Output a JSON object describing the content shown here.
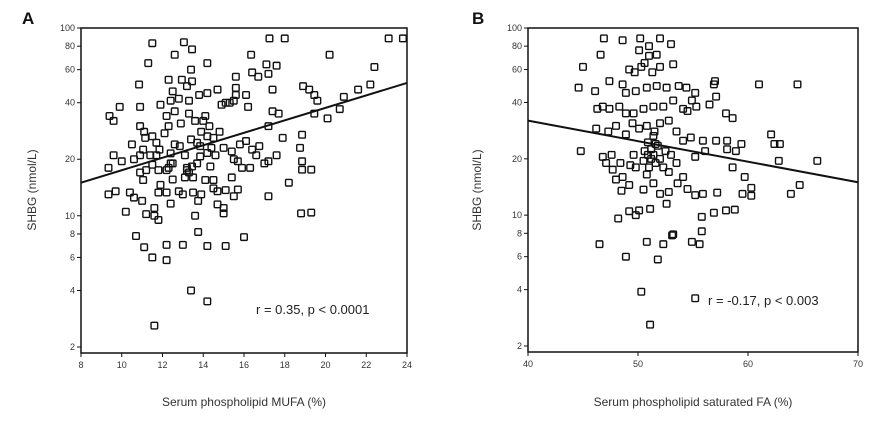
{
  "chart_data": [
    {
      "type": "scatter",
      "panel_label": "A",
      "xlabel": "Serum phospholipid MUFA (%)",
      "ylabel": "SHBG (nmol/L)",
      "xlim": [
        8,
        24
      ],
      "ylim": [
        2,
        100
      ],
      "yscale": "log",
      "xticks": [
        8,
        10,
        12,
        14,
        16,
        18,
        20,
        22,
        24
      ],
      "yticks": [
        2,
        4,
        6,
        8,
        10,
        20,
        40,
        60,
        80,
        100
      ],
      "annotation": "r = 0.35, p < 0.0001",
      "regression_line": [
        [
          8,
          15
        ],
        [
          24,
          51
        ]
      ],
      "marker": "open-square",
      "points": [
        [
          11.5,
          83
        ],
        [
          13.05,
          84
        ],
        [
          13.45,
          77
        ],
        [
          11.3,
          65
        ],
        [
          12.6,
          72
        ],
        [
          13.4,
          60
        ],
        [
          14.2,
          65
        ],
        [
          16.35,
          72
        ],
        [
          17.25,
          88
        ],
        [
          18,
          88
        ],
        [
          20.2,
          72
        ],
        [
          23.1,
          88
        ],
        [
          23.8,
          88
        ],
        [
          22.4,
          62
        ],
        [
          17.1,
          64
        ],
        [
          17.6,
          63
        ],
        [
          16.4,
          58
        ],
        [
          16.7,
          55
        ],
        [
          17.2,
          57
        ],
        [
          15.6,
          55
        ],
        [
          17.4,
          47
        ],
        [
          18.9,
          49
        ],
        [
          19.2,
          47
        ],
        [
          19.45,
          44
        ],
        [
          19.6,
          41
        ],
        [
          20.9,
          43
        ],
        [
          21.6,
          47
        ],
        [
          22.2,
          50
        ],
        [
          20.7,
          37
        ],
        [
          20.1,
          33
        ],
        [
          19.45,
          35
        ],
        [
          10.85,
          50
        ],
        [
          9.9,
          38
        ],
        [
          10.9,
          38
        ],
        [
          9.4,
          34
        ],
        [
          9.6,
          32
        ],
        [
          10.9,
          30
        ],
        [
          11.1,
          28
        ],
        [
          11.15,
          26
        ],
        [
          10.5,
          24
        ],
        [
          9.6,
          21
        ],
        [
          10,
          19.5
        ],
        [
          9.35,
          18
        ],
        [
          10.6,
          20
        ],
        [
          9.35,
          13
        ],
        [
          9.7,
          13.5
        ],
        [
          10.4,
          13.3
        ],
        [
          10.6,
          12.5
        ],
        [
          11,
          12
        ],
        [
          10.2,
          10.5
        ],
        [
          11.2,
          10.2
        ],
        [
          11.6,
          10
        ],
        [
          11.8,
          9.5
        ],
        [
          11.6,
          11
        ],
        [
          10.7,
          7.8
        ],
        [
          11.1,
          6.8
        ],
        [
          11.5,
          6
        ],
        [
          12.2,
          5.8
        ],
        [
          12.2,
          7
        ],
        [
          13,
          7
        ],
        [
          13.75,
          8.2
        ],
        [
          14.2,
          6.9
        ],
        [
          15.1,
          6.9
        ],
        [
          16,
          7.7
        ],
        [
          13.6,
          10
        ],
        [
          15,
          10.3
        ],
        [
          15,
          11
        ],
        [
          14.7,
          11.5
        ],
        [
          13.4,
          4.0
        ],
        [
          14.2,
          3.5
        ],
        [
          11.6,
          2.6
        ],
        [
          17.2,
          12.7
        ],
        [
          18.2,
          15
        ],
        [
          18.8,
          10.3
        ],
        [
          19.3,
          10.4
        ],
        [
          18.85,
          17.6
        ],
        [
          19.3,
          17.6
        ],
        [
          18.85,
          19.5
        ],
        [
          18.75,
          23
        ],
        [
          18.85,
          27
        ],
        [
          17.9,
          26
        ],
        [
          17.6,
          21
        ],
        [
          17.2,
          19.5
        ],
        [
          17,
          19
        ],
        [
          17.4,
          36
        ],
        [
          17.7,
          35
        ],
        [
          17.2,
          30
        ],
        [
          14.9,
          39
        ],
        [
          15.1,
          40
        ],
        [
          15.3,
          40
        ],
        [
          15.5,
          41
        ],
        [
          16.2,
          38
        ],
        [
          15.6,
          44
        ],
        [
          16.1,
          44
        ],
        [
          15.6,
          48
        ],
        [
          14.7,
          47
        ],
        [
          14.2,
          45
        ],
        [
          13.8,
          44
        ],
        [
          13.3,
          41
        ],
        [
          12.8,
          42
        ],
        [
          12.4,
          41
        ],
        [
          12.3,
          53
        ],
        [
          12.95,
          53
        ],
        [
          13.45,
          52
        ],
        [
          13.2,
          49
        ],
        [
          12.5,
          46
        ],
        [
          11.9,
          39
        ],
        [
          12.2,
          34
        ],
        [
          12.3,
          30
        ],
        [
          12.6,
          36
        ],
        [
          12.9,
          31
        ],
        [
          13.3,
          35
        ],
        [
          13.6,
          32
        ],
        [
          14,
          32
        ],
        [
          14.1,
          34
        ],
        [
          14.3,
          30
        ],
        [
          13.9,
          28
        ],
        [
          14.5,
          26
        ],
        [
          14.8,
          28
        ],
        [
          15,
          23
        ],
        [
          15.4,
          22
        ],
        [
          15.5,
          20
        ],
        [
          15.8,
          24
        ],
        [
          16.1,
          25
        ],
        [
          16.4,
          22.5
        ],
        [
          16.6,
          21
        ],
        [
          16.75,
          23.5
        ],
        [
          15.9,
          18
        ],
        [
          16.3,
          18
        ],
        [
          15.7,
          19.5
        ],
        [
          15.4,
          16
        ],
        [
          14.5,
          14
        ],
        [
          14.7,
          13.5
        ],
        [
          15.1,
          13.7
        ],
        [
          15.7,
          13.8
        ],
        [
          15.5,
          12.7
        ],
        [
          13.9,
          13
        ],
        [
          13.75,
          12
        ],
        [
          13.5,
          13.3
        ],
        [
          13,
          13
        ],
        [
          12.8,
          13.5
        ],
        [
          12.2,
          13.3
        ],
        [
          11.8,
          13.3
        ],
        [
          11.9,
          14.6
        ],
        [
          12.4,
          11.6
        ],
        [
          12.2,
          17.5
        ],
        [
          12.5,
          19
        ],
        [
          11.8,
          17.5
        ],
        [
          11.5,
          18.7
        ],
        [
          11.2,
          17.5
        ],
        [
          11.05,
          15.5
        ],
        [
          11.7,
          21
        ],
        [
          11.85,
          22.5
        ],
        [
          12.4,
          21.5
        ],
        [
          12.6,
          24
        ],
        [
          12.85,
          23.5
        ],
        [
          13.1,
          21
        ],
        [
          13.2,
          17.5
        ],
        [
          13.45,
          18.3
        ],
        [
          13.7,
          19
        ],
        [
          13.85,
          20.7
        ],
        [
          14.2,
          21.6
        ],
        [
          14.35,
          18.3
        ],
        [
          14.5,
          15.5
        ],
        [
          14.1,
          15.5
        ],
        [
          13.5,
          16
        ],
        [
          13.1,
          16
        ],
        [
          12.5,
          15.6
        ],
        [
          13.4,
          25.5
        ],
        [
          13.7,
          24.5
        ],
        [
          14.2,
          26.5
        ],
        [
          13.85,
          23.5
        ],
        [
          12.1,
          27.5
        ],
        [
          11.5,
          26.5
        ],
        [
          11.7,
          24.5
        ],
        [
          11.4,
          21
        ],
        [
          11.05,
          22.5
        ],
        [
          10.9,
          21
        ],
        [
          10.9,
          17
        ],
        [
          13.2,
          18
        ],
        [
          13.3,
          17
        ],
        [
          12.3,
          18
        ],
        [
          12.4,
          19
        ],
        [
          14.4,
          23
        ],
        [
          14.6,
          21
        ]
      ]
    },
    {
      "type": "scatter",
      "panel_label": "B",
      "xlabel": "Serum phospholipid saturated FA (%)",
      "ylabel": "SHBG (nmol/L)",
      "xlim": [
        40,
        70
      ],
      "ylim": [
        2,
        100
      ],
      "yscale": "log",
      "xticks": [
        40,
        50,
        60,
        70
      ],
      "yticks": [
        2,
        4,
        6,
        8,
        10,
        20,
        40,
        60,
        80,
        100
      ],
      "annotation": "r = -0.17, p < 0.003",
      "regression_line": [
        [
          40,
          32
        ],
        [
          70,
          15
        ]
      ],
      "marker": "open-square",
      "points": [
        [
          46.9,
          88
        ],
        [
          48.6,
          86
        ],
        [
          50.2,
          88
        ],
        [
          52,
          88
        ],
        [
          53,
          82
        ],
        [
          51,
          80
        ],
        [
          50.1,
          76
        ],
        [
          51.7,
          72
        ],
        [
          51,
          71
        ],
        [
          46.6,
          72
        ],
        [
          45,
          62
        ],
        [
          47.4,
          52
        ],
        [
          48.6,
          50
        ],
        [
          49.2,
          60
        ],
        [
          49.7,
          58
        ],
        [
          50.3,
          62
        ],
        [
          50.6,
          65
        ],
        [
          51.3,
          58
        ],
        [
          52,
          62
        ],
        [
          53.2,
          64
        ],
        [
          44.6,
          48
        ],
        [
          46.1,
          46
        ],
        [
          48.9,
          45
        ],
        [
          49.8,
          46
        ],
        [
          50.8,
          48
        ],
        [
          51.7,
          49
        ],
        [
          52.6,
          48
        ],
        [
          53.7,
          49
        ],
        [
          54.4,
          48
        ],
        [
          55.2,
          45
        ],
        [
          54.9,
          41
        ],
        [
          56.9,
          50
        ],
        [
          57,
          52
        ],
        [
          57.1,
          43
        ],
        [
          56.5,
          39
        ],
        [
          61,
          50
        ],
        [
          64.5,
          50
        ],
        [
          46.3,
          37
        ],
        [
          46.8,
          38
        ],
        [
          47.4,
          37
        ],
        [
          48.3,
          38
        ],
        [
          48.9,
          35
        ],
        [
          49.6,
          35
        ],
        [
          50.5,
          37
        ],
        [
          51.4,
          38
        ],
        [
          52.3,
          38
        ],
        [
          53.2,
          41
        ],
        [
          54.1,
          37
        ],
        [
          54.5,
          36
        ],
        [
          55.3,
          38
        ],
        [
          58,
          35
        ],
        [
          58.6,
          33
        ],
        [
          62.1,
          27
        ],
        [
          62.4,
          24
        ],
        [
          62.9,
          24
        ],
        [
          62.8,
          19.5
        ],
        [
          66.3,
          19.5
        ],
        [
          64.7,
          14.5
        ],
        [
          63.9,
          13
        ],
        [
          46.2,
          29
        ],
        [
          47.3,
          28
        ],
        [
          48,
          30
        ],
        [
          48.9,
          27
        ],
        [
          49.5,
          31
        ],
        [
          50.1,
          29
        ],
        [
          50.8,
          30
        ],
        [
          51.5,
          28
        ],
        [
          52,
          31
        ],
        [
          52.8,
          32
        ],
        [
          53.5,
          28
        ],
        [
          54.1,
          25
        ],
        [
          54.8,
          26
        ],
        [
          55.9,
          25
        ],
        [
          57.1,
          25
        ],
        [
          58.1,
          25
        ],
        [
          59.4,
          24
        ],
        [
          58.9,
          22
        ],
        [
          58.1,
          22.5
        ],
        [
          56.1,
          22
        ],
        [
          55.2,
          20.5
        ],
        [
          44.8,
          22
        ],
        [
          46.8,
          20.5
        ],
        [
          47.1,
          19
        ],
        [
          47.7,
          17.5
        ],
        [
          48,
          15.5
        ],
        [
          48.5,
          13.5
        ],
        [
          48.6,
          16
        ],
        [
          49.2,
          14.5
        ],
        [
          49.8,
          18
        ],
        [
          50.5,
          19.5
        ],
        [
          50.9,
          21
        ],
        [
          51.2,
          22.5
        ],
        [
          50.9,
          24.5
        ],
        [
          51.4,
          26.5
        ],
        [
          51.8,
          23.5
        ],
        [
          52,
          20
        ],
        [
          51.6,
          19
        ],
        [
          52.3,
          18
        ],
        [
          50.8,
          16.5
        ],
        [
          51.4,
          14.8
        ],
        [
          50.5,
          13.7
        ],
        [
          52,
          13
        ],
        [
          52.8,
          13.3
        ],
        [
          52.6,
          11.5
        ],
        [
          53.6,
          14.8
        ],
        [
          54.1,
          16
        ],
        [
          54.5,
          13.8
        ],
        [
          55.2,
          12.8
        ],
        [
          55.9,
          13
        ],
        [
          57.2,
          13.2
        ],
        [
          58.6,
          18
        ],
        [
          59.7,
          16
        ],
        [
          59.5,
          13
        ],
        [
          60.3,
          14
        ],
        [
          60.3,
          12.7
        ],
        [
          48.2,
          9.6
        ],
        [
          49.2,
          10.5
        ],
        [
          49.8,
          10
        ],
        [
          50.1,
          10.6
        ],
        [
          51.1,
          10.8
        ],
        [
          55.8,
          9.8
        ],
        [
          55.8,
          8.2
        ],
        [
          56.9,
          10.3
        ],
        [
          58,
          10.6
        ],
        [
          58.8,
          10.7
        ],
        [
          46.5,
          7
        ],
        [
          50.8,
          7.2
        ],
        [
          52.3,
          7
        ],
        [
          53.1,
          7.8
        ],
        [
          53.2,
          7.9
        ],
        [
          54.9,
          7.2
        ],
        [
          55.6,
          7
        ],
        [
          48.9,
          6
        ],
        [
          51.8,
          5.8
        ],
        [
          50.3,
          3.9
        ],
        [
          51.1,
          2.6
        ],
        [
          55.2,
          3.6
        ],
        [
          51.2,
          20
        ],
        [
          51.4,
          21
        ],
        [
          51.0,
          18
        ],
        [
          51.6,
          24
        ],
        [
          52.5,
          22
        ],
        [
          50.6,
          22
        ],
        [
          49.6,
          21
        ],
        [
          53,
          21
        ],
        [
          53.5,
          19
        ],
        [
          52.8,
          17
        ],
        [
          49.3,
          18.5
        ],
        [
          48.4,
          19
        ],
        [
          47.6,
          21
        ]
      ]
    }
  ]
}
